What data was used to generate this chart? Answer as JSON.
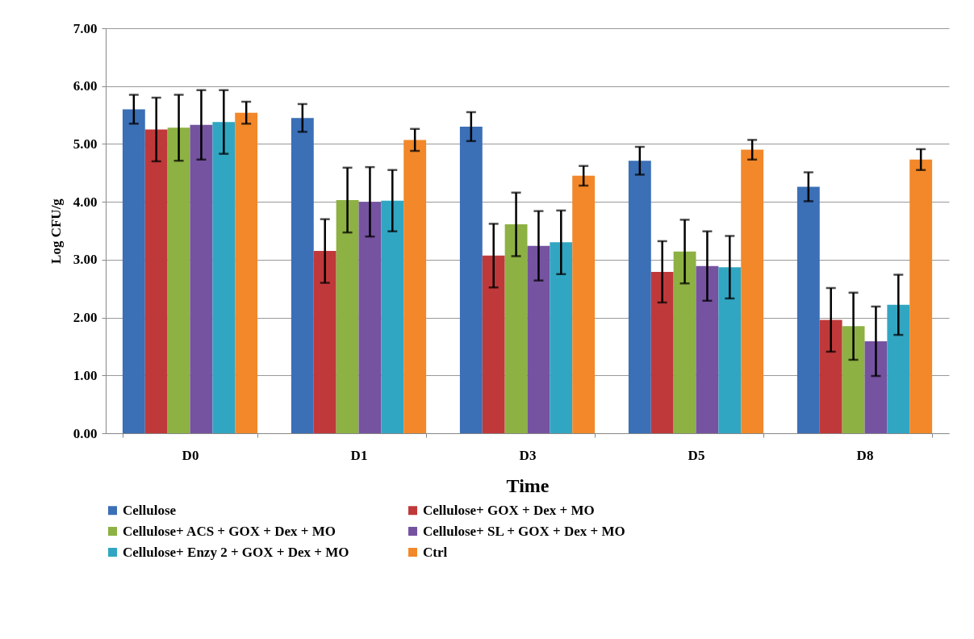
{
  "chart_data": {
    "type": "bar",
    "xlabel": "Time",
    "ylabel": "Log CFU/g",
    "categories": [
      "D0",
      "D1",
      "D3",
      "D5",
      "D8"
    ],
    "ylim": [
      0,
      7
    ],
    "yticks": [
      {
        "value": 0,
        "label": "0.00"
      },
      {
        "value": 1,
        "label": "1.00"
      },
      {
        "value": 2,
        "label": "2.00"
      },
      {
        "value": 3,
        "label": "3.00"
      },
      {
        "value": 4,
        "label": "4.00"
      },
      {
        "value": 5,
        "label": "5.00"
      },
      {
        "value": 6,
        "label": "6.00"
      },
      {
        "value": 7,
        "label": "7.00"
      }
    ],
    "grid": "y",
    "legend": "bottom",
    "series": [
      {
        "name": "Cellulose",
        "color": "#3b6fb6",
        "values": [
          5.6,
          5.45,
          5.3,
          4.71,
          4.26
        ],
        "errors": [
          0.25,
          0.24,
          0.25,
          0.24,
          0.25
        ]
      },
      {
        "name": "Cellulose+ GOX + Dex + MO",
        "color": "#c0393a",
        "values": [
          5.25,
          3.15,
          3.07,
          2.79,
          1.96
        ],
        "errors": [
          0.55,
          0.55,
          0.55,
          0.53,
          0.55
        ]
      },
      {
        "name": "Cellulose+ ACS + GOX + Dex + MO",
        "color": "#8db143",
        "values": [
          5.28,
          4.03,
          3.61,
          3.14,
          1.85
        ],
        "errors": [
          0.57,
          0.56,
          0.55,
          0.55,
          0.58
        ]
      },
      {
        "name": "Cellulose+ SL + GOX + Dex + MO",
        "color": "#7553a1",
        "values": [
          5.33,
          4.0,
          3.24,
          2.89,
          1.59
        ],
        "errors": [
          0.6,
          0.6,
          0.6,
          0.6,
          0.6
        ]
      },
      {
        "name": "Cellulose+ Enzy 2 + GOX + Dex + MO",
        "color": "#31a6c2",
        "values": [
          5.38,
          4.02,
          3.3,
          2.87,
          2.22
        ],
        "errors": [
          0.55,
          0.53,
          0.55,
          0.54,
          0.52
        ]
      },
      {
        "name": "Ctrl",
        "color": "#f2882a",
        "values": [
          5.54,
          5.07,
          4.45,
          4.9,
          4.73
        ],
        "errors": [
          0.19,
          0.19,
          0.17,
          0.17,
          0.18
        ]
      }
    ]
  }
}
